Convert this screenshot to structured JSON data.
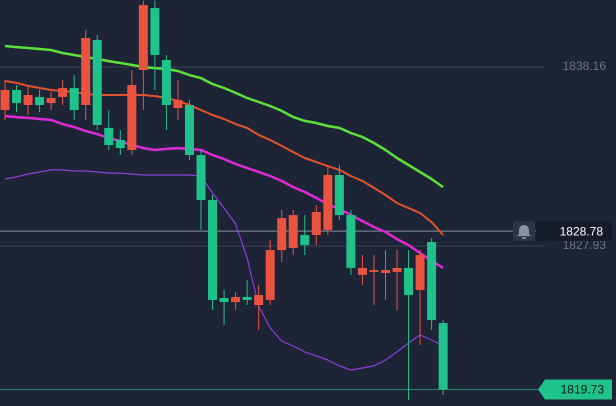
{
  "chart_data": {
    "type": "candlestick",
    "ylim": [
      1818.79,
      1841.99
    ],
    "yticks": [
      1838.16,
      1827.93
    ],
    "grid": true,
    "up_color": "#e9533f",
    "down_color": "#1fc28a",
    "alert_price": 1828.78,
    "last_price": 1819.73,
    "open": [
      1835.7,
      1836.85,
      1835.99,
      1836.45,
      1836.1,
      1836.45,
      1836.96,
      1835.99,
      1839.7,
      1834.68,
      1833.99,
      1833.42,
      1837.99,
      1841.53,
      1838.56,
      1835.82,
      1835.99,
      1833.13,
      1830.56,
      1824.96,
      1824.73,
      1825.02,
      1824.56,
      1824.85,
      1827.7,
      1827.82,
      1828.56,
      1828.56,
      1828.85,
      1831.99,
      1829.7,
      1826.28,
      1826.45,
      1826.39,
      1826.45,
      1826.68,
      1825.42,
      1828.16,
      1823.53
    ],
    "high": [
      1837.42,
      1837.13,
      1837.13,
      1836.85,
      1836.73,
      1837.42,
      1837.7,
      1840.28,
      1839.99,
      1835.7,
      1834.56,
      1837.99,
      1841.95,
      1841.95,
      1838.85,
      1837.42,
      1836.28,
      1833.42,
      1830.85,
      1825.42,
      1825.3,
      1825.99,
      1825.7,
      1828.28,
      1829.99,
      1829.99,
      1829.7,
      1830.28,
      1832.56,
      1832.56,
      1829.99,
      1827.42,
      1827.42,
      1827.7,
      1827.7,
      1827.7,
      1827.7,
      1828.39,
      1823.7
    ],
    "low": [
      1835.13,
      1835.59,
      1835.42,
      1835.59,
      1835.7,
      1835.99,
      1835.13,
      1835.13,
      1834.56,
      1833.42,
      1833.13,
      1833.13,
      1835.7,
      1836.85,
      1834.56,
      1835.13,
      1832.85,
      1828.85,
      1824.28,
      1823.42,
      1824.28,
      1824.56,
      1823.13,
      1824.56,
      1827.02,
      1827.42,
      1827.42,
      1827.99,
      1828.56,
      1829.42,
      1826.28,
      1825.7,
      1824.56,
      1824.85,
      1824.28,
      1819.13,
      1822.28,
      1823.13,
      1819.42
    ],
    "close": [
      1836.85,
      1836.1,
      1836.56,
      1835.99,
      1836.39,
      1836.96,
      1835.7,
      1839.82,
      1834.85,
      1833.7,
      1833.53,
      1837.13,
      1841.7,
      1838.85,
      1835.99,
      1836.28,
      1833.13,
      1830.56,
      1824.85,
      1824.73,
      1825.02,
      1824.85,
      1825.13,
      1827.7,
      1829.53,
      1829.7,
      1827.99,
      1829.88,
      1831.99,
      1829.7,
      1826.68,
      1826.68,
      1826.56,
      1826.56,
      1826.68,
      1825.13,
      1827.42,
      1823.7,
      1819.73
    ],
    "lines": [
      {
        "color": "#5fe03a",
        "width": 2.5,
        "values": [
          1839.36,
          1839.3,
          1839.25,
          1839.19,
          1839.13,
          1838.96,
          1838.85,
          1838.73,
          1838.62,
          1838.5,
          1838.39,
          1838.28,
          1838.16,
          1838.1,
          1838.05,
          1837.93,
          1837.7,
          1837.53,
          1837.19,
          1836.96,
          1836.68,
          1836.39,
          1836.16,
          1835.93,
          1835.65,
          1835.3,
          1835.08,
          1834.96,
          1834.79,
          1834.68,
          1834.39,
          1834.16,
          1833.82,
          1833.42,
          1832.96,
          1832.56,
          1832.16,
          1831.76,
          1831.3
        ]
      },
      {
        "color": "#e02ad8",
        "width": 2.5,
        "values": [
          1835.36,
          1835.3,
          1835.25,
          1835.19,
          1835.13,
          1834.9,
          1834.73,
          1834.5,
          1834.33,
          1834.1,
          1833.93,
          1833.7,
          1833.53,
          1833.42,
          1833.48,
          1833.53,
          1833.48,
          1833.42,
          1833.13,
          1832.9,
          1832.62,
          1832.39,
          1832.16,
          1831.93,
          1831.65,
          1831.3,
          1831.02,
          1830.68,
          1830.33,
          1830.05,
          1829.7,
          1829.36,
          1829.02,
          1828.73,
          1828.33,
          1827.99,
          1827.53,
          1827.08,
          1826.68
        ]
      },
      {
        "color": "#e2532c",
        "width": 2,
        "values": [
          1837.36,
          1837.25,
          1837.08,
          1836.96,
          1836.85,
          1836.79,
          1836.73,
          1836.62,
          1836.56,
          1836.56,
          1836.56,
          1836.56,
          1836.56,
          1836.5,
          1836.39,
          1836.22,
          1835.99,
          1835.7,
          1835.42,
          1835.19,
          1834.9,
          1834.68,
          1834.28,
          1833.99,
          1833.65,
          1833.3,
          1832.96,
          1832.73,
          1832.5,
          1832.28,
          1831.93,
          1831.65,
          1831.25,
          1830.85,
          1830.39,
          1830.1,
          1829.82,
          1829.3,
          1828.56
        ]
      },
      {
        "color": "#8a3fd9",
        "width": 1.2,
        "values": [
          1831.76,
          1831.88,
          1832.05,
          1832.16,
          1832.28,
          1832.28,
          1832.22,
          1832.22,
          1832.16,
          1832.1,
          1832.1,
          1832.05,
          1831.99,
          1831.99,
          1831.99,
          1831.99,
          1831.99,
          1831.93,
          1830.96,
          1830.1,
          1829.19,
          1827.25,
          1824.5,
          1823.25,
          1822.5,
          1822.22,
          1821.88,
          1821.65,
          1821.42,
          1821.08,
          1820.85,
          1820.96,
          1821.08,
          1821.42,
          1821.88,
          1822.39,
          1822.85,
          1822.56,
          1822.22
        ]
      }
    ]
  }
}
